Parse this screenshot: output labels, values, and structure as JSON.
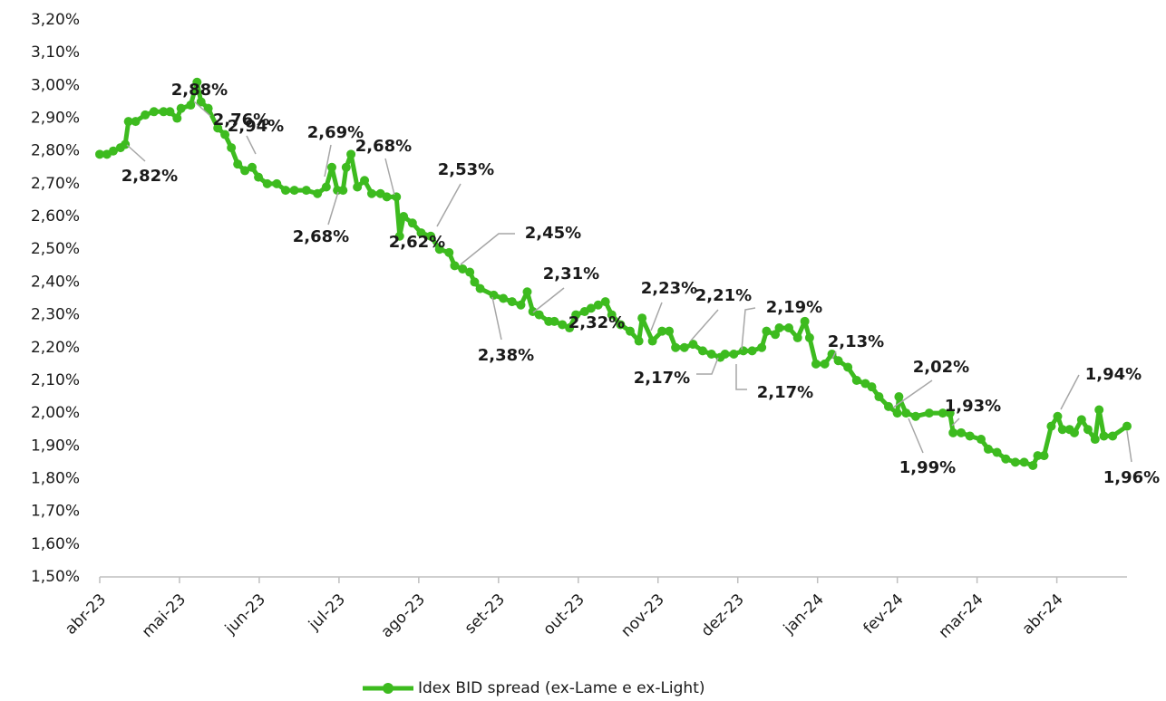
{
  "chart_data": {
    "type": "line",
    "x": [
      0,
      0.09,
      0.17,
      0.26,
      0.32,
      0.36,
      0.45,
      0.57,
      0.68,
      0.8,
      0.88,
      0.97,
      1.02,
      1.14,
      1.22,
      1.27,
      1.36,
      1.48,
      1.57,
      1.65,
      1.73,
      1.82,
      1.91,
      1.99,
      2.1,
      2.22,
      2.33,
      2.44,
      2.59,
      2.73,
      2.84,
      2.91,
      2.98,
      3.05,
      3.09,
      3.15,
      3.23,
      3.32,
      3.41,
      3.52,
      3.6,
      3.72,
      3.76,
      3.81,
      3.92,
      4.03,
      4.15,
      4.26,
      4.38,
      4.45,
      4.55,
      4.64,
      4.7,
      4.77,
      4.94,
      5.06,
      5.17,
      5.28,
      5.36,
      5.43,
      5.51,
      5.63,
      5.7,
      5.8,
      5.89,
      5.97,
      6.08,
      6.16,
      6.25,
      6.34,
      6.42,
      6.53,
      6.65,
      6.76,
      6.8,
      6.93,
      7.05,
      7.14,
      7.22,
      7.33,
      7.44,
      7.56,
      7.67,
      7.78,
      7.84,
      7.95,
      8.07,
      8.18,
      8.3,
      8.36,
      8.47,
      8.52,
      8.64,
      8.75,
      8.84,
      8.9,
      8.98,
      9.09,
      9.18,
      9.26,
      9.38,
      9.49,
      9.6,
      9.68,
      9.77,
      9.89,
      10.0,
      10.02,
      10.11,
      10.23,
      10.4,
      10.57,
      10.66,
      10.7,
      10.8,
      10.91,
      11.05,
      11.14,
      11.25,
      11.36,
      11.48,
      11.59,
      11.7,
      11.76,
      11.84,
      11.93,
      12.01,
      12.07,
      12.16,
      12.22,
      12.31,
      12.39,
      12.48,
      12.53,
      12.59,
      12.7,
      12.88
    ],
    "series": [
      {
        "name": "Idex BID spread (ex-Lame e ex-Light)",
        "color": "#3dbb1f",
        "values": [
          2.79,
          2.79,
          2.8,
          2.81,
          2.82,
          2.89,
          2.89,
          2.91,
          2.92,
          2.92,
          2.92,
          2.9,
          2.93,
          2.94,
          3.01,
          2.95,
          2.93,
          2.87,
          2.85,
          2.81,
          2.76,
          2.74,
          2.75,
          2.72,
          2.7,
          2.7,
          2.68,
          2.68,
          2.68,
          2.67,
          2.69,
          2.75,
          2.68,
          2.68,
          2.75,
          2.79,
          2.69,
          2.71,
          2.67,
          2.67,
          2.66,
          2.66,
          2.54,
          2.6,
          2.58,
          2.55,
          2.54,
          2.5,
          2.49,
          2.45,
          2.44,
          2.43,
          2.4,
          2.38,
          2.36,
          2.35,
          2.34,
          2.33,
          2.37,
          2.31,
          2.3,
          2.28,
          2.28,
          2.27,
          2.26,
          2.3,
          2.31,
          2.32,
          2.33,
          2.34,
          2.3,
          2.27,
          2.25,
          2.22,
          2.29,
          2.22,
          2.25,
          2.25,
          2.2,
          2.2,
          2.21,
          2.19,
          2.18,
          2.17,
          2.18,
          2.18,
          2.19,
          2.19,
          2.2,
          2.25,
          2.24,
          2.26,
          2.26,
          2.23,
          2.28,
          2.23,
          2.15,
          2.15,
          2.18,
          2.16,
          2.14,
          2.1,
          2.09,
          2.08,
          2.05,
          2.02,
          2.0,
          2.05,
          2.0,
          1.99,
          2.0,
          2.0,
          2.0,
          1.94,
          1.94,
          1.93,
          1.92,
          1.89,
          1.88,
          1.86,
          1.85,
          1.85,
          1.84,
          1.87,
          1.87,
          1.96,
          1.99,
          1.95,
          1.95,
          1.94,
          1.98,
          1.95,
          1.92,
          2.01,
          1.93,
          1.93,
          1.96
        ]
      }
    ],
    "xlim": [
      0,
      12.88
    ],
    "xticks": [
      {
        "value": 0,
        "label": "abr-23"
      },
      {
        "value": 1,
        "label": "mai-23"
      },
      {
        "value": 2,
        "label": "jun-23"
      },
      {
        "value": 3,
        "label": "jul-23"
      },
      {
        "value": 4,
        "label": "ago-23"
      },
      {
        "value": 5,
        "label": "set-23"
      },
      {
        "value": 6,
        "label": "out-23"
      },
      {
        "value": 7,
        "label": "nov-23"
      },
      {
        "value": 8,
        "label": "dez-23"
      },
      {
        "value": 9,
        "label": "jan-24"
      },
      {
        "value": 10,
        "label": "fev-24"
      },
      {
        "value": 11,
        "label": "mar-24"
      },
      {
        "value": 12,
        "label": "abr-24"
      }
    ],
    "ylim": [
      1.5,
      3.2
    ],
    "yticks": [
      {
        "value": 1.5,
        "label": "1,50%"
      },
      {
        "value": 1.6,
        "label": "1,60%"
      },
      {
        "value": 1.7,
        "label": "1,70%"
      },
      {
        "value": 1.8,
        "label": "1,80%"
      },
      {
        "value": 1.9,
        "label": "1,90%"
      },
      {
        "value": 2.0,
        "label": "2,00%"
      },
      {
        "value": 2.1,
        "label": "2,10%"
      },
      {
        "value": 2.2,
        "label": "2,20%"
      },
      {
        "value": 2.3,
        "label": "2,30%"
      },
      {
        "value": 2.4,
        "label": "2,40%"
      },
      {
        "value": 2.5,
        "label": "2,50%"
      },
      {
        "value": 2.6,
        "label": "2,60%"
      },
      {
        "value": 2.7,
        "label": "2,70%"
      },
      {
        "value": 2.8,
        "label": "2,80%"
      },
      {
        "value": 2.9,
        "label": "2,90%"
      },
      {
        "value": 3.0,
        "label": "3,00%"
      },
      {
        "value": 3.1,
        "label": "3,10%"
      },
      {
        "value": 3.2,
        "label": "3,20%"
      }
    ],
    "annotations": [
      "2,82%",
      "2,88%",
      "2,76%",
      "2,94%",
      "2,69%",
      "2,68%",
      "2,68%",
      "2,53%",
      "2,62%",
      "2,45%",
      "2,31%",
      "2,38%",
      "2,32%",
      "2,23%",
      "2,21%",
      "2,17%",
      "2,19%",
      "2,17%",
      "2,13%",
      "2,02%",
      "1,93%",
      "1,99%",
      "1,94%",
      "1,96%"
    ],
    "legend": "bottom"
  }
}
